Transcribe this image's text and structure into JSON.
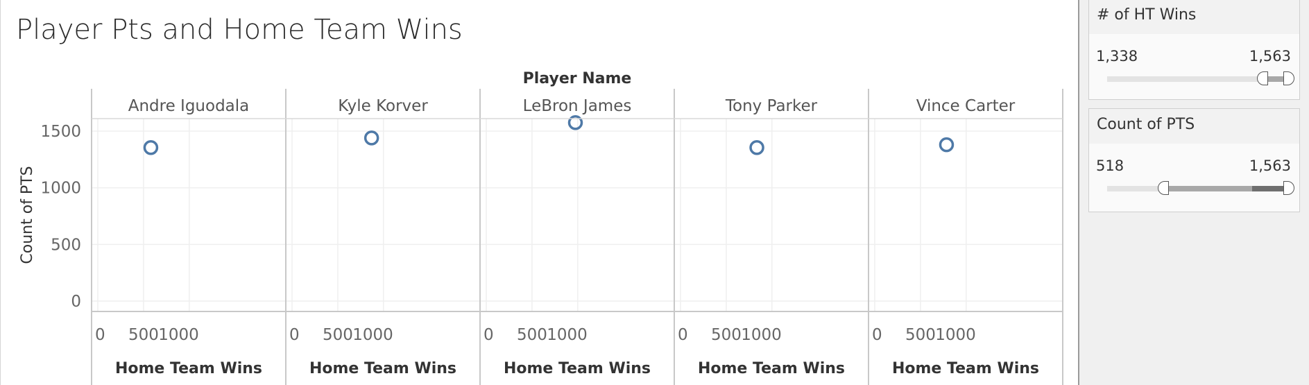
{
  "title": "Player Pts and Home Team Wins",
  "chart_data": {
    "type": "scatter",
    "title": "Player Pts and Home Team Wins",
    "column_header": "Player Name",
    "xlabel": "Home Team Wins",
    "ylabel": "Count of PTS",
    "xlim": [
      0,
      1000
    ],
    "ylim": [
      0,
      1500
    ],
    "x_ticks": [
      0,
      500,
      1000
    ],
    "y_ticks": [
      0,
      500,
      1000,
      1500
    ],
    "grid": true,
    "mark_color": "#4e79a7",
    "panels": [
      {
        "player": "Andre Iguodala",
        "x": 580,
        "y": 1355
      },
      {
        "player": "Kyle Korver",
        "x": 870,
        "y": 1440
      },
      {
        "player": "LeBron James",
        "x": 975,
        "y": 1575
      },
      {
        "player": "Tony Parker",
        "x": 835,
        "y": 1355
      },
      {
        "player": "Vince Carter",
        "x": 785,
        "y": 1380
      }
    ]
  },
  "filters": {
    "ht_wins": {
      "title": "# of HT Wins",
      "min_label": "1,338",
      "max_label": "1,563",
      "selected_from": 0.897,
      "selected_to": 1.0
    },
    "count_pts": {
      "title": "Count of PTS",
      "min_label": "518",
      "max_label": "1,563",
      "selected_from": 0.338,
      "selected_to": 1.0,
      "data_from": 0.338,
      "data_to": 0.817
    }
  }
}
